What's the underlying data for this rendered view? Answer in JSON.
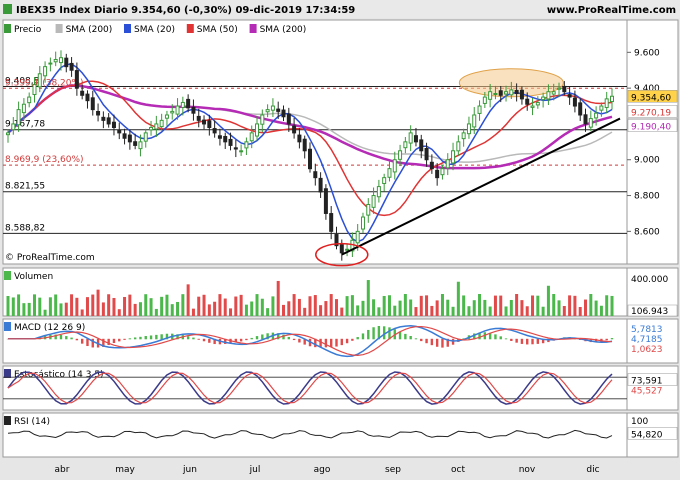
{
  "header": {
    "title": "IBEX35 Index Diario 9.354,60 (-0,30%) 09-dic-2019 17:34:59",
    "brand": "www.ProRealTime.com",
    "watermark": "© ProRealTime.com"
  },
  "colors": {
    "background": "#ffffff",
    "panel_bg": "#ffffff",
    "header_bg": "#e9e9e9",
    "sma200": "#b9b9b9",
    "sma20": "#2b4fd6",
    "sma50": "#e03434",
    "sma200b": "#b52bb5",
    "candle_up": "#3a9a3a",
    "candle_down": "#222222",
    "vol_up": "#4cb84c",
    "vol_down": "#e04a4a",
    "macd_line": "#3a7bd5",
    "macd_signal": "#e04a4a",
    "stoch_k": "#3a3a8a",
    "stoch_d": "#e04a4a",
    "rsi": "#222222",
    "ellipse_fill": "#f4c98a"
  },
  "legend": [
    {
      "id": "precio",
      "label": "Precio",
      "color": "#3a9a3a"
    },
    {
      "id": "sma200",
      "label": "SMA (200)",
      "color": "#b9b9b9"
    },
    {
      "id": "sma20",
      "label": "SMA (20)",
      "color": "#2b4fd6"
    },
    {
      "id": "sma50",
      "label": "SMA (50)",
      "color": "#e03434"
    },
    {
      "id": "sma200b",
      "label": "SMA (200)",
      "color": "#b52bb5"
    }
  ],
  "price_levels": [
    {
      "label": "9.408,8",
      "value": 9408.8
    },
    {
      "label": "9.399,1 (38,20%)",
      "value": 9399.1,
      "red": true
    },
    {
      "label": "9.167,78",
      "value": 9167.78
    },
    {
      "label": "8.969,9 (23,60%)",
      "value": 8969.9,
      "red": true
    },
    {
      "label": "8.821,55",
      "value": 8821.55
    },
    {
      "label": "8.588,82",
      "value": 8588.82
    }
  ],
  "price_axis": {
    "ticks": [
      9600,
      9400,
      9000,
      8800,
      8600
    ],
    "tick_labels": [
      "9.600",
      "9.400",
      "9.000",
      "8.800",
      "8.600"
    ],
    "min": 8440,
    "max": 9680
  },
  "price_tags": [
    {
      "label": "9.354,60",
      "value": 9354.6,
      "bg": "#ffd24a",
      "fg": "#000000"
    },
    {
      "label": "9.270,19",
      "value": 9270.19,
      "bg": "#ffffff",
      "fg": "#e03434"
    },
    {
      "label": "9.198,40",
      "value": 9198.4,
      "bg": "#ffffff",
      "fg": "#2b4fd6"
    },
    {
      "label": "9.190,40",
      "value": 9190.4,
      "bg": "#ffffff",
      "fg": "#b52bb5"
    }
  ],
  "volume": {
    "title": "Volumen",
    "tick_label": "400.000",
    "value_label": "106.943"
  },
  "macd": {
    "title": "MACD (12 26 9)",
    "tags": [
      "5,7813",
      "4,7185",
      "1,0623"
    ]
  },
  "stoch": {
    "title": "Estocástico (14 3 5)",
    "tags": [
      "73,591",
      "45,527"
    ]
  },
  "rsi": {
    "title": "RSI (14)",
    "tick_label": "100",
    "value_label": "54,820"
  },
  "x_axis": {
    "labels": [
      "abr",
      "may",
      "jun",
      "jul",
      "ago",
      "sep",
      "oct",
      "nov",
      "dic"
    ]
  },
  "chart_data": {
    "type": "candlestick",
    "title": "IBEX35 Index Diario",
    "series_closes": [
      9150,
      9200,
      9280,
      9310,
      9350,
      9420,
      9480,
      9520,
      9540,
      9560,
      9570,
      9520,
      9500,
      9400,
      9360,
      9330,
      9280,
      9250,
      9220,
      9200,
      9180,
      9150,
      9120,
      9100,
      9080,
      9100,
      9150,
      9180,
      9200,
      9220,
      9250,
      9270,
      9300,
      9320,
      9290,
      9260,
      9220,
      9200,
      9180,
      9150,
      9120,
      9100,
      9080,
      9060,
      9050,
      9100,
      9150,
      9200,
      9250,
      9280,
      9300,
      9270,
      9240,
      9200,
      9150,
      9100,
      9050,
      8950,
      8900,
      8820,
      8700,
      8600,
      8520,
      8480,
      8500,
      8550,
      8600,
      8680,
      8750,
      8800,
      8850,
      8900,
      8950,
      9000,
      9050,
      9100,
      9150,
      9100,
      9050,
      9000,
      8950,
      8900,
      8950,
      9000,
      9050,
      9100,
      9150,
      9200,
      9250,
      9300,
      9350,
      9380,
      9370,
      9360,
      9380,
      9390,
      9370,
      9340,
      9310,
      9300,
      9320,
      9350,
      9380,
      9380,
      9400,
      9380,
      9350,
      9300,
      9250,
      9200,
      9230,
      9260,
      9300,
      9340,
      9354.6
    ],
    "sma20_last": 9198.4,
    "sma50_last": 9270.19,
    "sma200_last": 9190.4,
    "last_close": 9354.6,
    "change_pct": -0.3,
    "ellipse_note": "Highlighted top zone around 9.400",
    "support_line": {
      "from_value": 8470,
      "to_value": 9230
    },
    "low_marker_value": 8470,
    "x_labels": [
      "abr",
      "may",
      "jun",
      "jul",
      "ago",
      "sep",
      "oct",
      "nov",
      "dic"
    ]
  }
}
